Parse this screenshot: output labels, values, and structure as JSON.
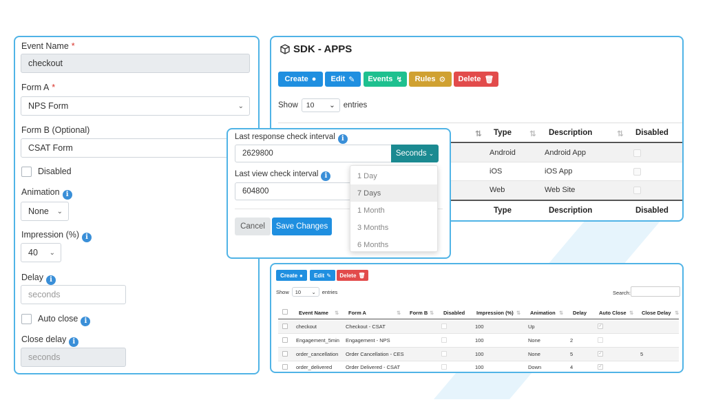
{
  "form": {
    "event_name_label": "Event Name",
    "event_name_value": "checkout",
    "form_a_label": "Form A",
    "form_a_value": "NPS Form",
    "form_b_label": "Form B (Optional)",
    "form_b_value": "CSAT Form",
    "disabled_label": "Disabled",
    "animation_label": "Animation",
    "animation_value": "None",
    "impression_label": "Impression (%)",
    "impression_value": "40",
    "delay_label": "Delay",
    "delay_placeholder": "seconds",
    "auto_close_label": "Auto close",
    "close_delay_label": "Close delay",
    "close_delay_placeholder": "seconds",
    "required_mark": "*"
  },
  "apps": {
    "title": "SDK - APPS",
    "buttons": {
      "create": "Create",
      "edit": "Edit",
      "events": "Events",
      "rules": "Rules",
      "delete": "Delete"
    },
    "show_label": "Show",
    "entries_value": "10",
    "entries_label": "entries",
    "columns": {
      "type": "Type",
      "description": "Description",
      "disabled": "Disabled"
    },
    "rows": [
      {
        "type": "Android",
        "description": "Android App"
      },
      {
        "type": "iOS",
        "description": "iOS App"
      },
      {
        "type": "Web",
        "description": "Web Site"
      }
    ]
  },
  "modal": {
    "response_label": "Last response check interval",
    "response_value": "2629800",
    "unit_button": "Seconds",
    "view_label": "Last view check interval",
    "view_value": "604800",
    "cancel": "Cancel",
    "save": "Save Changes",
    "unit_options": [
      "1 Day",
      "7 Days",
      "1 Month",
      "3 Months",
      "6 Months"
    ],
    "selected_option": "7 Days"
  },
  "events": {
    "buttons": {
      "create": "Create",
      "edit": "Edit",
      "delete": "Delete"
    },
    "show_label": "Show",
    "entries_value": "10",
    "entries_label": "entries",
    "search_label": "Search:",
    "columns": [
      "Event Name",
      "Form A",
      "Form B",
      "Disabled",
      "Impression (%)",
      "Animation",
      "Delay",
      "Auto Close",
      "Close Delay"
    ],
    "rows": [
      {
        "event": "checkout",
        "form_a": "Checkout - CSAT",
        "impression": "100",
        "animation": "Up",
        "delay": "",
        "close_delay": ""
      },
      {
        "event": "Engagement_5min",
        "form_a": "Engagement - NPS",
        "impression": "100",
        "animation": "None",
        "delay": "2",
        "close_delay": ""
      },
      {
        "event": "order_cancellation",
        "form_a": "Order Cancellation - CES",
        "impression": "100",
        "animation": "None",
        "delay": "5",
        "close_delay": "5"
      },
      {
        "event": "order_delivered",
        "form_a": "Order Delivered - CSAT",
        "impression": "100",
        "animation": "Down",
        "delay": "4",
        "close_delay": ""
      }
    ]
  },
  "colors": {
    "accent_border": "#4fb3e6",
    "primary": "#1f8fe0",
    "teal": "#1b8a91",
    "green": "#1ec08f",
    "gold": "#d0a131",
    "red": "#e24b4b"
  }
}
